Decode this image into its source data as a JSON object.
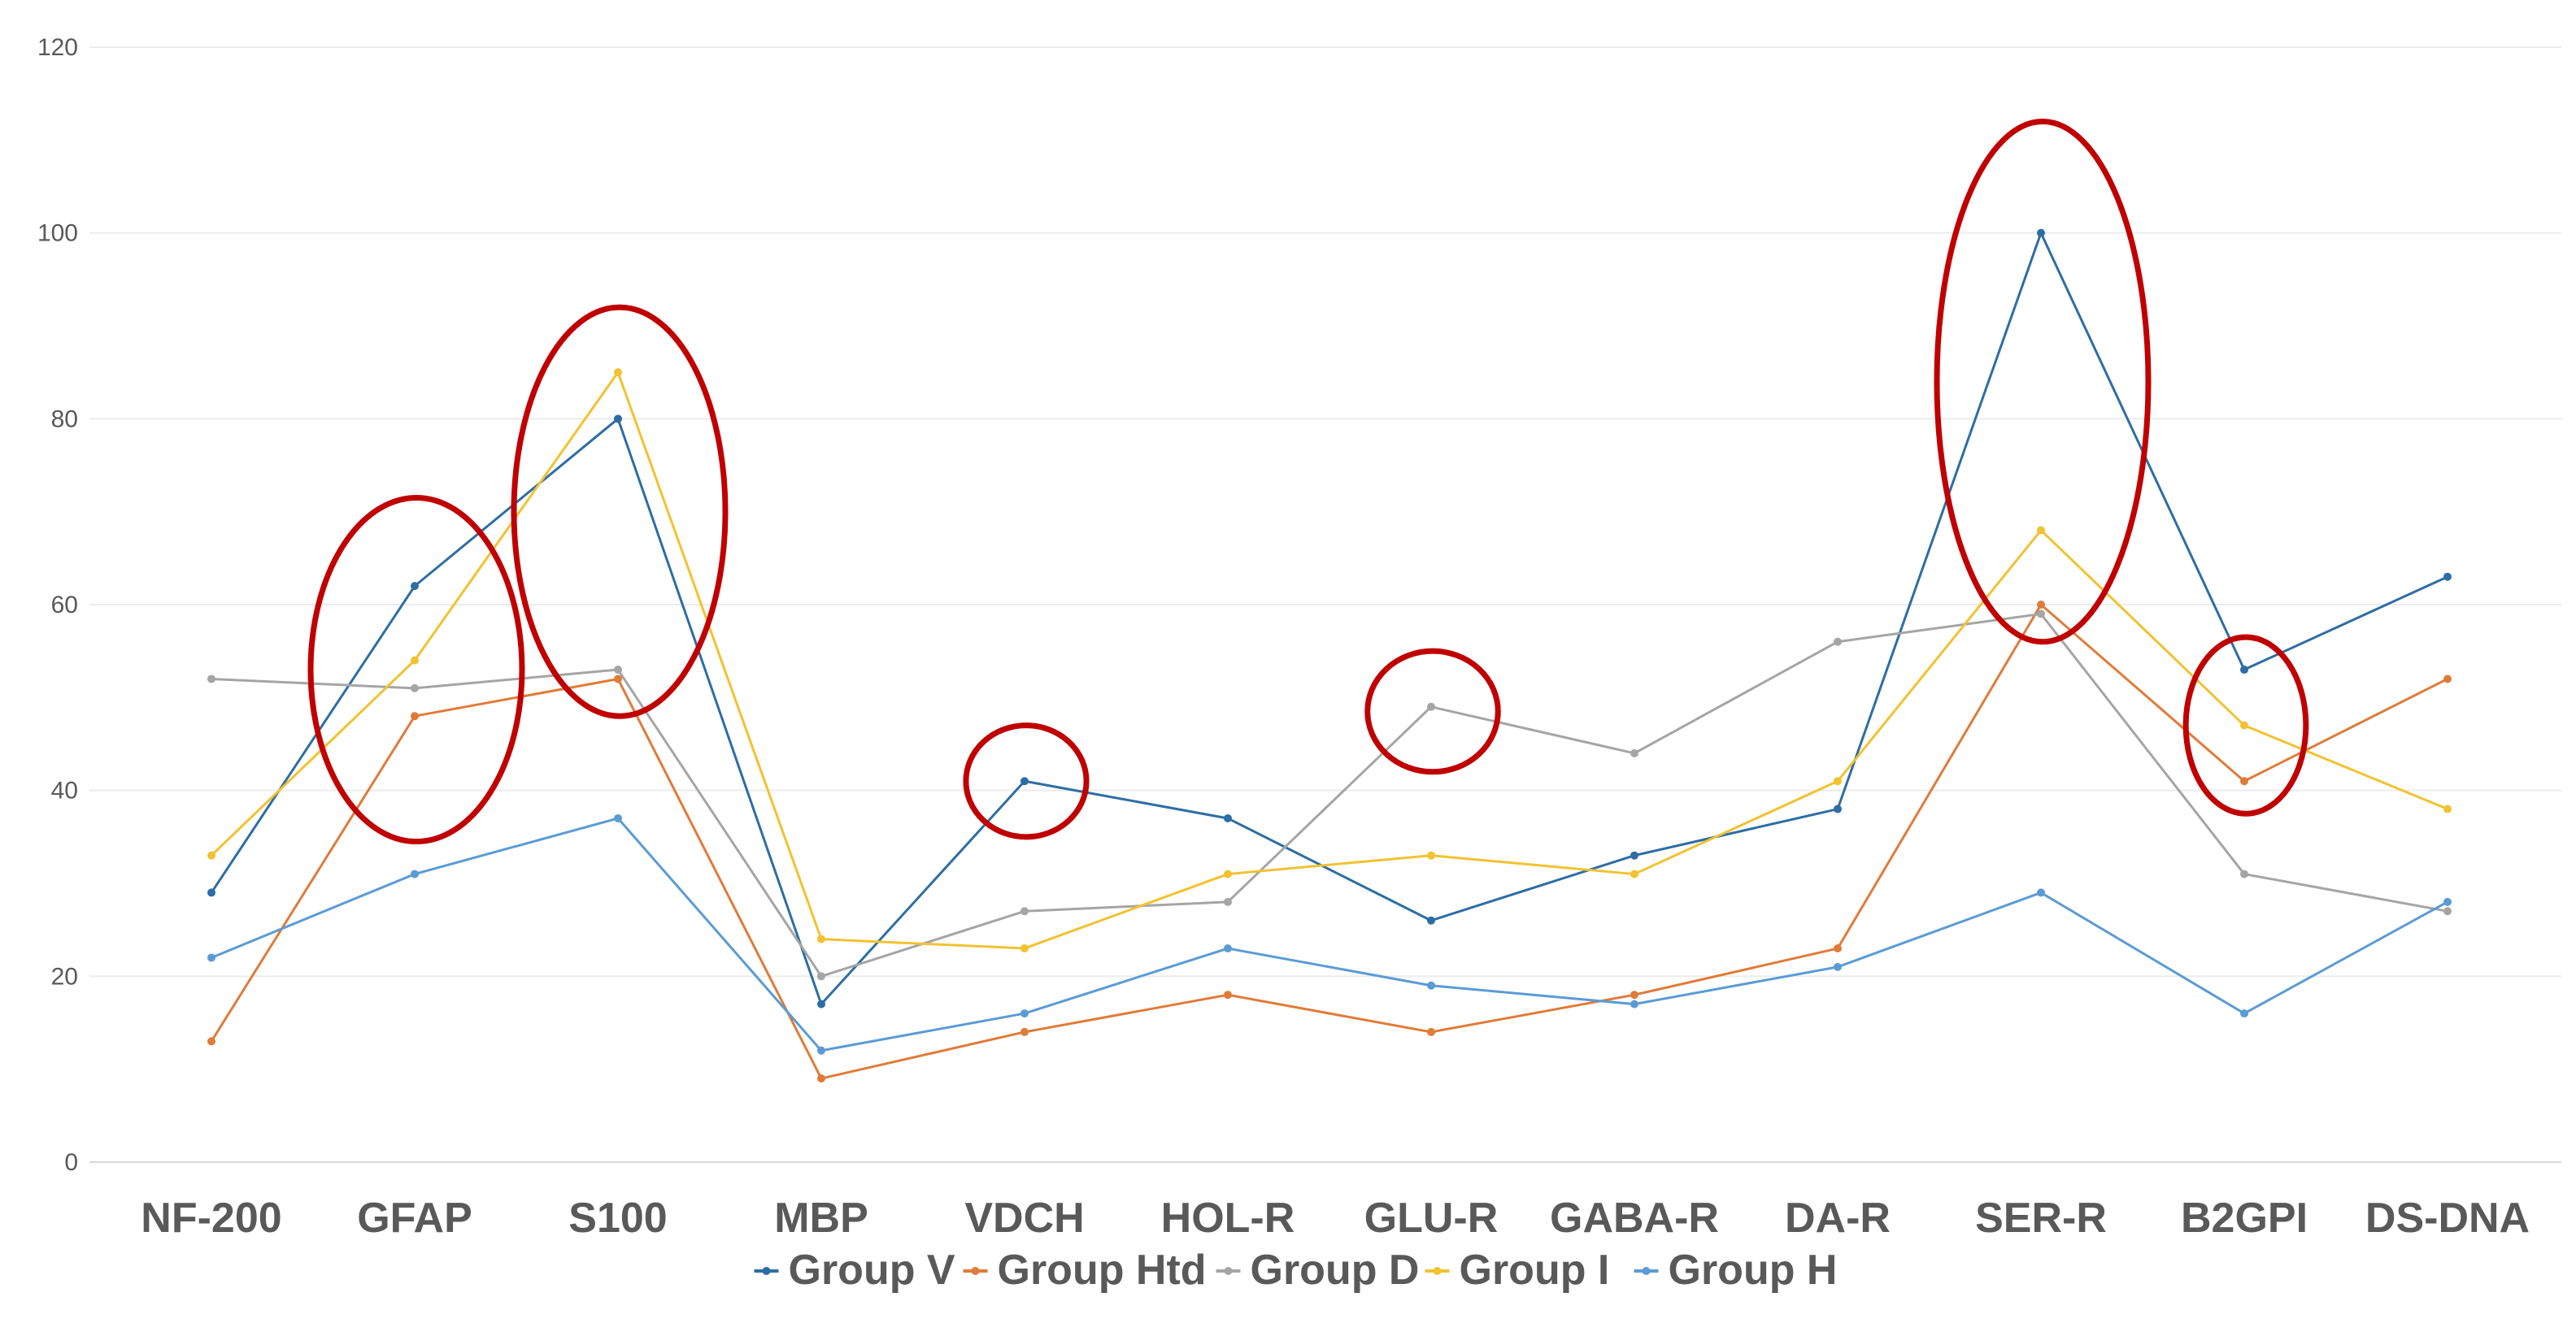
{
  "chart_data": {
    "type": "line",
    "title": "",
    "xlabel": "",
    "ylabel": "",
    "ylim": [
      0,
      120
    ],
    "yticks": [
      0,
      20,
      40,
      60,
      80,
      100,
      120
    ],
    "grid": true,
    "legend_position": "bottom",
    "categories": [
      "NF-200",
      "GFAP",
      "S100",
      "MBP",
      "VDCH",
      "HOL-R",
      "GLU-R",
      "GABA-R",
      "DA-R",
      "SER-R",
      "B2GPI",
      "DS-DNA"
    ],
    "series": [
      {
        "name": "Group V",
        "color": "#2e6da4",
        "values": [
          29,
          62,
          80,
          17,
          41,
          37,
          26,
          33,
          38,
          100,
          53,
          63
        ]
      },
      {
        "name": "Group Htd",
        "color": "#e07b39",
        "values": [
          13,
          48,
          52,
          9,
          14,
          18,
          14,
          18,
          23,
          60,
          41,
          52
        ]
      },
      {
        "name": "Group D",
        "color": "#a5a5a5",
        "values": [
          52,
          51,
          53,
          20,
          27,
          28,
          49,
          44,
          56,
          59,
          31,
          27
        ]
      },
      {
        "name": "Group I",
        "color": "#f2c230",
        "values": [
          33,
          54,
          85,
          24,
          23,
          31,
          33,
          31,
          41,
          68,
          47,
          38
        ]
      },
      {
        "name": "Group H",
        "color": "#5b9bd5",
        "values": [
          22,
          31,
          37,
          12,
          16,
          23,
          19,
          17,
          21,
          29,
          16,
          28
        ]
      }
    ],
    "highlights": [
      {
        "category": "GFAP",
        "y_center": 53,
        "y_range": [
          35,
          72
        ],
        "color": "#c00000"
      },
      {
        "category": "S100",
        "y_center": 70,
        "y_range": [
          48,
          92
        ],
        "color": "#c00000"
      },
      {
        "category": "VDCH",
        "y_center": 41,
        "y_range": [
          35,
          47
        ],
        "color": "#c00000"
      },
      {
        "category": "GLU-R",
        "y_center": 48.5,
        "y_range": [
          42,
          55
        ],
        "color": "#c00000"
      },
      {
        "category": "SER-R",
        "y_center": 84,
        "y_range": [
          56,
          112
        ],
        "color": "#c00000"
      },
      {
        "category": "B2GPI",
        "y_center": 47,
        "y_range": [
          37,
          56
        ],
        "color": "#c00000"
      }
    ]
  }
}
